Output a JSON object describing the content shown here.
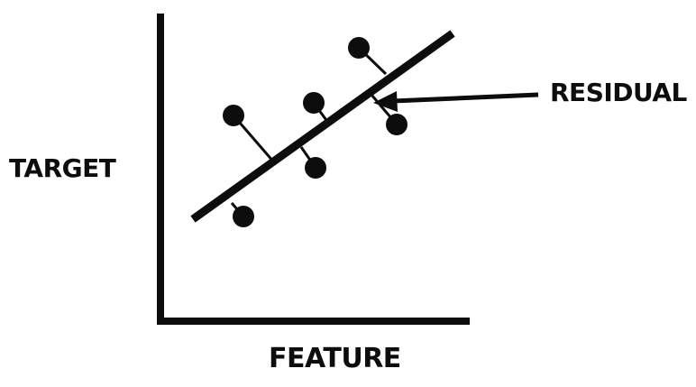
{
  "labels": {
    "y_axis": "TARGET",
    "x_axis": "FEATURE",
    "annotation": "RESIDUAL"
  },
  "colors": {
    "ink": "#0d0d0d",
    "background": "#ffffff"
  }
}
